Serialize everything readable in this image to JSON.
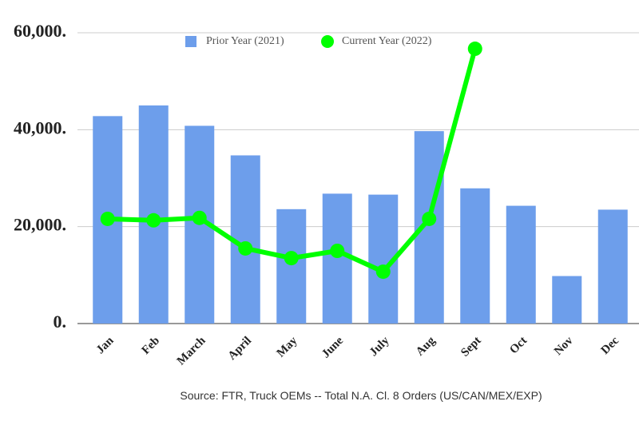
{
  "chart_data": {
    "type": "bar_line",
    "categories": [
      "Jan",
      "Feb",
      "March",
      "April",
      "May",
      "June",
      "July",
      "Aug",
      "Sept",
      "Oct",
      "Nov",
      "Dec"
    ],
    "series": [
      {
        "name": "Prior Year (2021)",
        "type": "bar",
        "color": "#6d9eeb",
        "values": [
          42800,
          45000,
          40800,
          34700,
          23600,
          26800,
          26600,
          39700,
          27900,
          24300,
          9800,
          23500
        ]
      },
      {
        "name": "Current Year (2022)",
        "type": "line",
        "color": "#00ff00",
        "values": [
          21600,
          21300,
          21800,
          15500,
          13500,
          15000,
          10700,
          21600,
          56700,
          null,
          null,
          null
        ]
      }
    ],
    "ylim": [
      0,
      60000
    ],
    "yticks": [
      {
        "value": 0,
        "label": "0."
      },
      {
        "value": 20000,
        "label": "20,000."
      },
      {
        "value": 40000,
        "label": "40,000."
      },
      {
        "value": 60000,
        "label": "60,000."
      }
    ],
    "grid": true,
    "source": "Source: FTR, Truck OEMs -- Total N.A. Cl. 8 Orders (US/CAN/MEX/EXP)"
  }
}
